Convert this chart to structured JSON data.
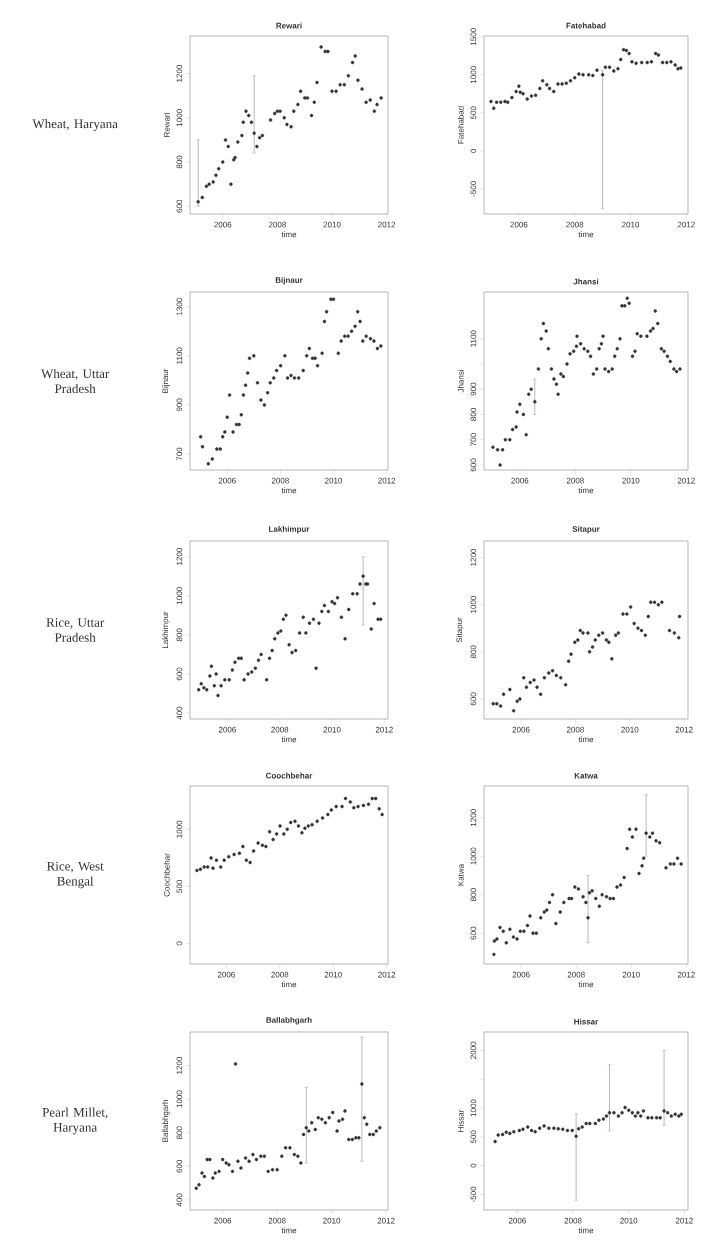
{
  "chart_data": [
    {
      "type": "scatter",
      "title": "Rewari",
      "xlabel": "time",
      "ylabel": "Rewari",
      "annotations": [
        "Wheat, Haryana"
      ],
      "marker": "circle",
      "xlim": [
        2004.8,
        2012.05
      ],
      "ylim": [
        565,
        1370
      ],
      "xticks": [
        2006,
        2008,
        2010,
        2012
      ],
      "yticks": [
        600,
        800,
        1000,
        1200
      ],
      "series": [
        {
          "color": "#333333",
          "x": [
            2005.25,
            2005.4,
            2005.5,
            2005.65,
            2005.75,
            2005.85,
            2006.0,
            2006.1,
            2006.2,
            2006.3,
            2006.4,
            2006.45,
            2006.55,
            2006.7,
            2006.75,
            2006.85,
            2006.95,
            2007.05,
            2007.25,
            2007.35,
            2007.45,
            2007.75,
            2007.9,
            2008.0,
            2008.1,
            2008.25,
            2008.35,
            2008.5,
            2008.6,
            2008.75,
            2008.85,
            2009.0,
            2009.1,
            2009.25,
            2009.35,
            2009.45,
            2009.6,
            2009.75,
            2009.85,
            2010.0,
            2010.15,
            2010.3,
            2010.45,
            2010.6,
            2010.75,
            2010.85,
            2010.95,
            2011.1,
            2011.25,
            2011.4,
            2011.55,
            2011.65,
            2011.8
          ],
          "values": [
            640,
            690,
            700,
            710,
            740,
            770,
            800,
            900,
            870,
            700,
            810,
            820,
            890,
            920,
            980,
            1030,
            1010,
            980,
            870,
            910,
            920,
            990,
            1020,
            1030,
            1030,
            1000,
            970,
            960,
            1030,
            1060,
            1120,
            1090,
            1090,
            1010,
            1070,
            1160,
            1320,
            1300,
            1300,
            1120,
            1120,
            1150,
            1150,
            1190,
            1250,
            1280,
            1170,
            1130,
            1070,
            1080,
            1030,
            1060,
            1090
          ]
        },
        {
          "color": "#333333",
          "x": [
            2005.1,
            2007.15
          ],
          "values": [
            620,
            930
          ],
          "errors": [
            [
              600,
              900
            ],
            [
              840,
              1190
            ]
          ]
        }
      ]
    },
    {
      "type": "scatter",
      "title": "Fatehabad",
      "xlabel": "time",
      "ylabel": "Fatehabad",
      "marker": "circle",
      "xlim": [
        2004.75,
        2012.06
      ],
      "ylim": [
        -830,
        1510
      ],
      "xticks": [
        2006,
        2008,
        2010,
        2012
      ],
      "yticks": [
        -500,
        0,
        500,
        1000,
        1500
      ],
      "series": [
        {
          "color": "#333333",
          "x": [
            2005.0,
            2005.1,
            2005.2,
            2005.35,
            2005.5,
            2005.6,
            2005.75,
            2005.9,
            2006.0,
            2006.05,
            2006.15,
            2006.3,
            2006.45,
            2006.6,
            2006.75,
            2006.85,
            2007.0,
            2007.1,
            2007.25,
            2007.4,
            2007.55,
            2007.7,
            2007.85,
            2008.0,
            2008.15,
            2008.3,
            2008.5,
            2008.65,
            2008.8,
            2009.1,
            2009.25,
            2009.4,
            2009.55,
            2009.65,
            2009.75,
            2009.85,
            2009.95,
            2010.05,
            2010.2,
            2010.4,
            2010.6,
            2010.75,
            2010.9,
            2011.0,
            2011.15,
            2011.3,
            2011.45,
            2011.6,
            2011.7,
            2011.8
          ],
          "values": [
            650,
            560,
            640,
            640,
            650,
            640,
            700,
            780,
            850,
            770,
            750,
            680,
            720,
            730,
            820,
            920,
            870,
            820,
            780,
            880,
            880,
            890,
            920,
            960,
            1010,
            1000,
            1000,
            990,
            1060,
            1100,
            1100,
            1050,
            1080,
            1200,
            1330,
            1320,
            1280,
            1170,
            1150,
            1160,
            1160,
            1170,
            1280,
            1260,
            1160,
            1160,
            1170,
            1130,
            1080,
            1090
          ]
        },
        {
          "color": "#333333",
          "x": [
            2009.0
          ],
          "values": [
            1000
          ],
          "errors": [
            [
              -760,
              1060
            ]
          ]
        }
      ]
    },
    {
      "type": "scatter",
      "title": "Bijnaur",
      "xlabel": "time",
      "ylabel": "Bijnaur",
      "annotations": [
        "Wheat, Uttar Pradesh"
      ],
      "marker": "circle",
      "xlim": [
        2004.6,
        2012.05
      ],
      "ylim": [
        635,
        1360
      ],
      "xticks": [
        2006,
        2008,
        2010,
        2012
      ],
      "yticks": [
        700,
        900,
        1100,
        1300
      ],
      "series": [
        {
          "color": "#333333",
          "x": [
            2005.0,
            2005.07,
            2005.29,
            2005.44,
            2005.61,
            2005.74,
            2005.83,
            2005.91,
            2006.0,
            2006.09,
            2006.22,
            2006.35,
            2006.45,
            2006.53,
            2006.61,
            2006.69,
            2006.77,
            2006.84,
            2007.0,
            2007.14,
            2007.27,
            2007.4,
            2007.52,
            2007.62,
            2007.75,
            2007.86,
            2008.01,
            2008.17,
            2008.27,
            2008.4,
            2008.53,
            2008.69,
            2008.86,
            2008.99,
            2009.09,
            2009.21,
            2009.31,
            2009.4,
            2009.57,
            2009.66,
            2009.74,
            2009.9,
            2010.0,
            2010.18,
            2010.29,
            2010.42,
            2010.55,
            2010.68,
            2010.81,
            2010.91,
            2011.0,
            2011.1,
            2011.23,
            2011.39,
            2011.52,
            2011.65,
            2011.78
          ],
          "values": [
            770,
            730,
            660,
            680,
            720,
            720,
            770,
            790,
            850,
            940,
            790,
            820,
            820,
            860,
            940,
            980,
            1030,
            1090,
            1100,
            990,
            920,
            900,
            950,
            990,
            1010,
            1040,
            1060,
            1100,
            1010,
            1020,
            1010,
            1010,
            1040,
            1100,
            1130,
            1090,
            1090,
            1060,
            1110,
            1240,
            1280,
            1330,
            1330,
            1110,
            1160,
            1180,
            1180,
            1200,
            1220,
            1280,
            1240,
            1160,
            1180,
            1170,
            1160,
            1130,
            1140
          ]
        }
      ]
    },
    {
      "type": "scatter",
      "title": "Jhansi",
      "xlabel": "time",
      "ylabel": "Jhansi",
      "marker": "circle",
      "xlim": [
        2004.71,
        2012.06
      ],
      "ylim": [
        580,
        1285
      ],
      "xticks": [
        2006,
        2008,
        2010,
        2012
      ],
      "yticks": [
        600,
        700,
        800,
        900,
        {
          "value": 1000,
          "label": null
        },
        1100
      ],
      "series": [
        {
          "color": "#333333",
          "x": [
            2005.03,
            2005.2,
            2005.29,
            2005.38,
            2005.48,
            2005.64,
            2005.74,
            2005.87,
            2005.9,
            2006.0,
            2006.13,
            2006.23,
            2006.32,
            2006.41,
            2006.67,
            2006.77,
            2006.85,
            2006.95,
            2007.03,
            2007.14,
            2007.23,
            2007.32,
            2007.38,
            2007.48,
            2007.57,
            2007.7,
            2007.81,
            2007.94,
            2008.04,
            2008.06,
            2008.19,
            2008.32,
            2008.45,
            2008.55,
            2008.65,
            2008.77,
            2008.86,
            2008.94,
            2009.0,
            2009.07,
            2009.2,
            2009.33,
            2009.42,
            2009.51,
            2009.61,
            2009.68,
            2009.78,
            2009.87,
            2009.94,
            2010.06,
            2010.15,
            2010.23,
            2010.36,
            2010.58,
            2010.71,
            2010.8,
            2010.88,
            2010.97,
            2011.1,
            2011.2,
            2011.32,
            2011.42,
            2011.55,
            2011.65,
            2011.77
          ],
          "values": [
            670,
            660,
            600,
            660,
            700,
            700,
            740,
            750,
            810,
            840,
            800,
            720,
            880,
            900,
            980,
            1100,
            1160,
            1130,
            1060,
            980,
            940,
            920,
            880,
            960,
            950,
            1000,
            1040,
            1050,
            1070,
            1110,
            1080,
            1060,
            1050,
            1030,
            960,
            980,
            1060,
            1080,
            1110,
            980,
            970,
            980,
            1030,
            1060,
            1100,
            1230,
            1230,
            1260,
            1240,
            1030,
            1050,
            1120,
            1110,
            1110,
            1130,
            1140,
            1210,
            1160,
            1060,
            1050,
            1030,
            1010,
            980,
            970,
            980
          ]
        },
        {
          "color": "#333333",
          "x": [
            2006.54
          ],
          "values": [
            850
          ],
          "errors": [
            [
              800,
              940
            ]
          ]
        }
      ]
    },
    {
      "type": "scatter",
      "title": "Lakhimpur",
      "xlabel": "time",
      "ylabel": "Lakhimpur",
      "annotations": [
        "Rice, Uttar Pradesh"
      ],
      "marker": "circle",
      "xlim": [
        2004.57,
        2012.14
      ],
      "ylim": [
        370,
        1280
      ],
      "xticks": [
        2006,
        2008,
        2010,
        2012
      ],
      "yticks": [
        400,
        600,
        800,
        1000,
        1200
      ],
      "series": [
        {
          "color": "#333333",
          "x": [
            2004.9,
            2005.0,
            2005.1,
            2005.21,
            2005.33,
            2005.39,
            2005.5,
            2005.57,
            2005.64,
            2005.76,
            2005.9,
            2006.07,
            2006.19,
            2006.29,
            2006.43,
            2006.53,
            2006.64,
            2006.79,
            2006.93,
            2007.07,
            2007.19,
            2007.29,
            2007.5,
            2007.61,
            2007.71,
            2007.81,
            2007.93,
            2008.04,
            2008.14,
            2008.24,
            2008.36,
            2008.47,
            2008.61,
            2008.76,
            2008.9,
            2009.0,
            2009.14,
            2009.29,
            2009.39,
            2009.5,
            2009.61,
            2009.71,
            2009.86,
            2010.0,
            2010.1,
            2010.21,
            2010.36,
            2010.5,
            2010.64,
            2010.79,
            2010.96,
            2011.07,
            2011.29,
            2011.36,
            2011.5,
            2011.61,
            2011.76,
            2011.86
          ],
          "values": [
            520,
            550,
            530,
            520,
            590,
            640,
            540,
            600,
            490,
            540,
            570,
            570,
            620,
            660,
            680,
            680,
            570,
            600,
            610,
            630,
            670,
            700,
            570,
            680,
            720,
            780,
            810,
            820,
            880,
            900,
            750,
            710,
            720,
            810,
            890,
            810,
            860,
            880,
            630,
            860,
            920,
            950,
            920,
            970,
            960,
            990,
            890,
            780,
            930,
            1010,
            1010,
            1060,
            1060,
            1060,
            830,
            960,
            880,
            880
          ]
        },
        {
          "color": "#333333",
          "x": [
            2011.19
          ],
          "values": [
            1100
          ],
          "errors": [
            [
              850,
              1200
            ]
          ]
        }
      ]
    },
    {
      "type": "scatter",
      "title": "Sitapur",
      "xlabel": "time",
      "ylabel": "Sitapur",
      "marker": "circle",
      "xlim": [
        2004.64,
        2012.14
      ],
      "ylim": [
        515,
        1270
      ],
      "xticks": [
        2006,
        2008,
        2010,
        2012
      ],
      "yticks": [
        600,
        800,
        1000,
        1200
      ],
      "series": [
        {
          "color": "#333333",
          "x": [
            2004.98,
            2005.11,
            2005.25,
            2005.36,
            2005.59,
            2005.73,
            2005.86,
            2005.96,
            2006.1,
            2006.2,
            2006.34,
            2006.48,
            2006.59,
            2006.72,
            2006.86,
            2007.02,
            2007.16,
            2007.3,
            2007.46,
            2007.64,
            2007.75,
            2007.84,
            2007.98,
            2008.09,
            2008.18,
            2008.28,
            2008.46,
            2008.52,
            2008.63,
            2008.73,
            2008.86,
            2009.0,
            2009.14,
            2009.23,
            2009.34,
            2009.48,
            2009.58,
            2009.75,
            2009.89,
            2010.03,
            2010.16,
            2010.3,
            2010.43,
            2010.57,
            2010.68,
            2010.77,
            2010.91,
            2011.05,
            2011.18,
            2011.46,
            2011.64,
            2011.8,
            2011.83
          ],
          "values": [
            580,
            580,
            570,
            620,
            640,
            550,
            590,
            600,
            690,
            650,
            670,
            680,
            650,
            620,
            690,
            710,
            720,
            700,
            690,
            660,
            760,
            790,
            840,
            850,
            890,
            880,
            880,
            800,
            820,
            850,
            870,
            880,
            850,
            840,
            770,
            870,
            880,
            960,
            960,
            990,
            920,
            900,
            890,
            870,
            950,
            1010,
            1010,
            1000,
            1010,
            890,
            880,
            860,
            950
          ]
        }
      ]
    },
    {
      "type": "scatter",
      "title": "Coochbehar",
      "xlabel": "time",
      "ylabel": "Coochbehar",
      "annotations": [
        "Rice, West Bengal"
      ],
      "marker": "circle",
      "xlim": [
        2004.64,
        2012.05
      ],
      "ylim": [
        -180,
        1380
      ],
      "xticks": [
        2006,
        2008,
        2010,
        2012
      ],
      "yticks": [
        0,
        500,
        1000
      ],
      "series": [
        {
          "color": "#333333",
          "x": [
            2004.9,
            2005.03,
            2005.17,
            2005.3,
            2005.43,
            2005.5,
            2005.63,
            2005.79,
            2005.92,
            2006.09,
            2006.29,
            2006.49,
            2006.62,
            2006.75,
            2006.89,
            2007.02,
            2007.19,
            2007.35,
            2007.48,
            2007.62,
            2007.75,
            2007.88,
            2008.01,
            2008.15,
            2008.28,
            2008.41,
            2008.57,
            2008.7,
            2008.83,
            2008.94,
            2009.07,
            2009.21,
            2009.4,
            2009.6,
            2009.8,
            2009.93,
            2010.11,
            2010.33,
            2010.46,
            2010.64,
            2010.77,
            2010.93,
            2011.13,
            2011.32,
            2011.46,
            2011.59,
            2011.72,
            2011.83
          ],
          "values": [
            640,
            650,
            670,
            670,
            750,
            660,
            730,
            670,
            730,
            760,
            780,
            790,
            850,
            730,
            710,
            810,
            880,
            860,
            850,
            980,
            910,
            960,
            1030,
            960,
            1000,
            1060,
            1070,
            1030,
            970,
            1010,
            1030,
            1040,
            1070,
            1100,
            1130,
            1170,
            1200,
            1200,
            1270,
            1240,
            1190,
            1200,
            1210,
            1220,
            1270,
            1270,
            1180,
            1130
          ]
        }
      ]
    },
    {
      "type": "scatter",
      "title": "Katwa",
      "xlabel": "time",
      "ylabel": "Katwa",
      "marker": "circle",
      "xlim": [
        2004.65,
        2012.06
      ],
      "ylim": [
        440,
        1365
      ],
      "xticks": [
        2006,
        2008,
        2010,
        2012
      ],
      "yticks": [
        600,
        800,
        1000,
        1200
      ],
      "series": [
        {
          "color": "#333333",
          "x": [
            2005.01,
            2005.03,
            2005.12,
            2005.23,
            2005.35,
            2005.46,
            2005.59,
            2005.72,
            2005.85,
            2005.97,
            2006.1,
            2006.23,
            2006.32,
            2006.43,
            2006.55,
            2006.71,
            2006.84,
            2006.93,
            2007.03,
            2007.14,
            2007.26,
            2007.42,
            2007.55,
            2007.74,
            2007.83,
            2007.95,
            2008.08,
            2008.25,
            2008.35,
            2008.48,
            2008.58,
            2008.71,
            2008.84,
            2008.94,
            2009.1,
            2009.23,
            2009.35,
            2009.48,
            2009.61,
            2009.74,
            2009.85,
            2009.94,
            2010.04,
            2010.17,
            2010.28,
            2010.39,
            2010.45,
            2010.67,
            2010.77,
            2010.9,
            2011.03,
            2011.26,
            2011.42,
            2011.55,
            2011.68,
            2011.81
          ],
          "values": [
            490,
            560,
            570,
            630,
            610,
            550,
            620,
            580,
            570,
            610,
            610,
            640,
            690,
            600,
            600,
            680,
            710,
            720,
            760,
            800,
            650,
            710,
            760,
            780,
            780,
            840,
            830,
            790,
            760,
            810,
            820,
            780,
            740,
            800,
            790,
            780,
            780,
            840,
            850,
            890,
            1040,
            1140,
            1100,
            1140,
            910,
            950,
            990,
            1100,
            1120,
            1080,
            1070,
            940,
            960,
            960,
            990,
            960
          ]
        },
        {
          "color": "#333333",
          "x": [
            2008.43,
            2010.54
          ],
          "values": [
            680,
            1120
          ],
          "errors": [
            [
              550,
              900
            ],
            [
              1000,
              1320
            ]
          ]
        }
      ]
    },
    {
      "type": "scatter",
      "title": "Ballabhgarh",
      "xlabel": "time",
      "ylabel": "Ballabhgarh",
      "annotations": [
        "Pearl Millet, Haryana"
      ],
      "marker": "circle",
      "xlim": [
        2004.8,
        2012.07
      ],
      "ylim": [
        340,
        1400
      ],
      "xticks": [
        2006,
        2008,
        2010,
        2012
      ],
      "yticks": [
        400,
        600,
        800,
        1000,
        1200
      ],
      "series": [
        {
          "color": "#333333",
          "x": [
            2005.03,
            2005.13,
            2005.24,
            2005.33,
            2005.43,
            2005.53,
            2005.64,
            2005.73,
            2005.87,
            2006.0,
            2006.13,
            2006.23,
            2006.36,
            2006.47,
            2006.56,
            2006.67,
            2006.84,
            2006.97,
            2007.11,
            2007.24,
            2007.4,
            2007.53,
            2007.67,
            2007.83,
            2008.0,
            2008.17,
            2008.31,
            2008.47,
            2008.63,
            2008.76,
            2008.87,
            2008.97,
            2009.16,
            2009.27,
            2009.4,
            2009.51,
            2009.64,
            2009.77,
            2009.91,
            2010.04,
            2010.2,
            2010.27,
            2010.4,
            2010.49,
            2010.63,
            2010.76,
            2010.89,
            2011.0,
            2011.2,
            2011.29,
            2011.4,
            2011.53,
            2011.64,
            2011.77
          ],
          "values": [
            470,
            490,
            560,
            540,
            640,
            640,
            530,
            560,
            570,
            640,
            620,
            610,
            570,
            1210,
            630,
            590,
            650,
            630,
            670,
            640,
            660,
            660,
            570,
            580,
            580,
            660,
            710,
            710,
            670,
            660,
            620,
            790,
            810,
            860,
            820,
            890,
            880,
            860,
            890,
            920,
            810,
            870,
            880,
            930,
            760,
            760,
            770,
            770,
            890,
            850,
            790,
            790,
            810,
            830
          ]
        },
        {
          "color": "#333333",
          "x": [
            2009.07,
            2011.11
          ],
          "values": [
            830,
            1090
          ],
          "errors": [
            [
              620,
              1070
            ],
            [
              630,
              1370
            ]
          ]
        }
      ]
    },
    {
      "type": "scatter",
      "title": "Hissar",
      "xlabel": "time",
      "ylabel": "Hissar",
      "marker": "circle",
      "xlim": [
        2004.8,
        2012.13
      ],
      "ylim": [
        -770,
        2320
      ],
      "xticks": [
        2006,
        2008,
        2010,
        2012
      ],
      "yticks": [
        -500,
        0,
        500,
        1000,
        {
          "value": 1500,
          "label": null
        },
        2000
      ],
      "series": [
        {
          "color": "#333333",
          "x": [
            2005.2,
            2005.31,
            2005.47,
            2005.6,
            2005.73,
            2005.87,
            2006.07,
            2006.2,
            2006.37,
            2006.51,
            2006.64,
            2006.8,
            2006.96,
            2007.13,
            2007.31,
            2007.47,
            2007.63,
            2007.8,
            2007.97,
            2008.2,
            2008.33,
            2008.47,
            2008.6,
            2008.8,
            2008.93,
            2009.09,
            2009.2,
            2009.47,
            2009.63,
            2009.76,
            2009.87,
            2010.0,
            2010.13,
            2010.24,
            2010.33,
            2010.43,
            2010.53,
            2010.69,
            2010.83,
            2011.0,
            2011.13,
            2011.4,
            2011.53,
            2011.67,
            2011.8,
            2011.89
          ],
          "values": [
            420,
            530,
            540,
            580,
            560,
            590,
            610,
            630,
            670,
            610,
            590,
            650,
            690,
            650,
            650,
            640,
            630,
            610,
            610,
            640,
            670,
            730,
            730,
            730,
            790,
            810,
            860,
            920,
            860,
            920,
            1010,
            960,
            920,
            860,
            920,
            860,
            950,
            830,
            830,
            830,
            830,
            920,
            860,
            890,
            860,
            890
          ]
        },
        {
          "color": "#333333",
          "x": [
            2008.11,
            2009.31,
            2011.27
          ],
          "values": [
            510,
            920,
            950
          ],
          "errors": [
            [
              -600,
              900
            ],
            [
              600,
              1750
            ],
            [
              700,
              2000
            ]
          ]
        }
      ]
    }
  ]
}
